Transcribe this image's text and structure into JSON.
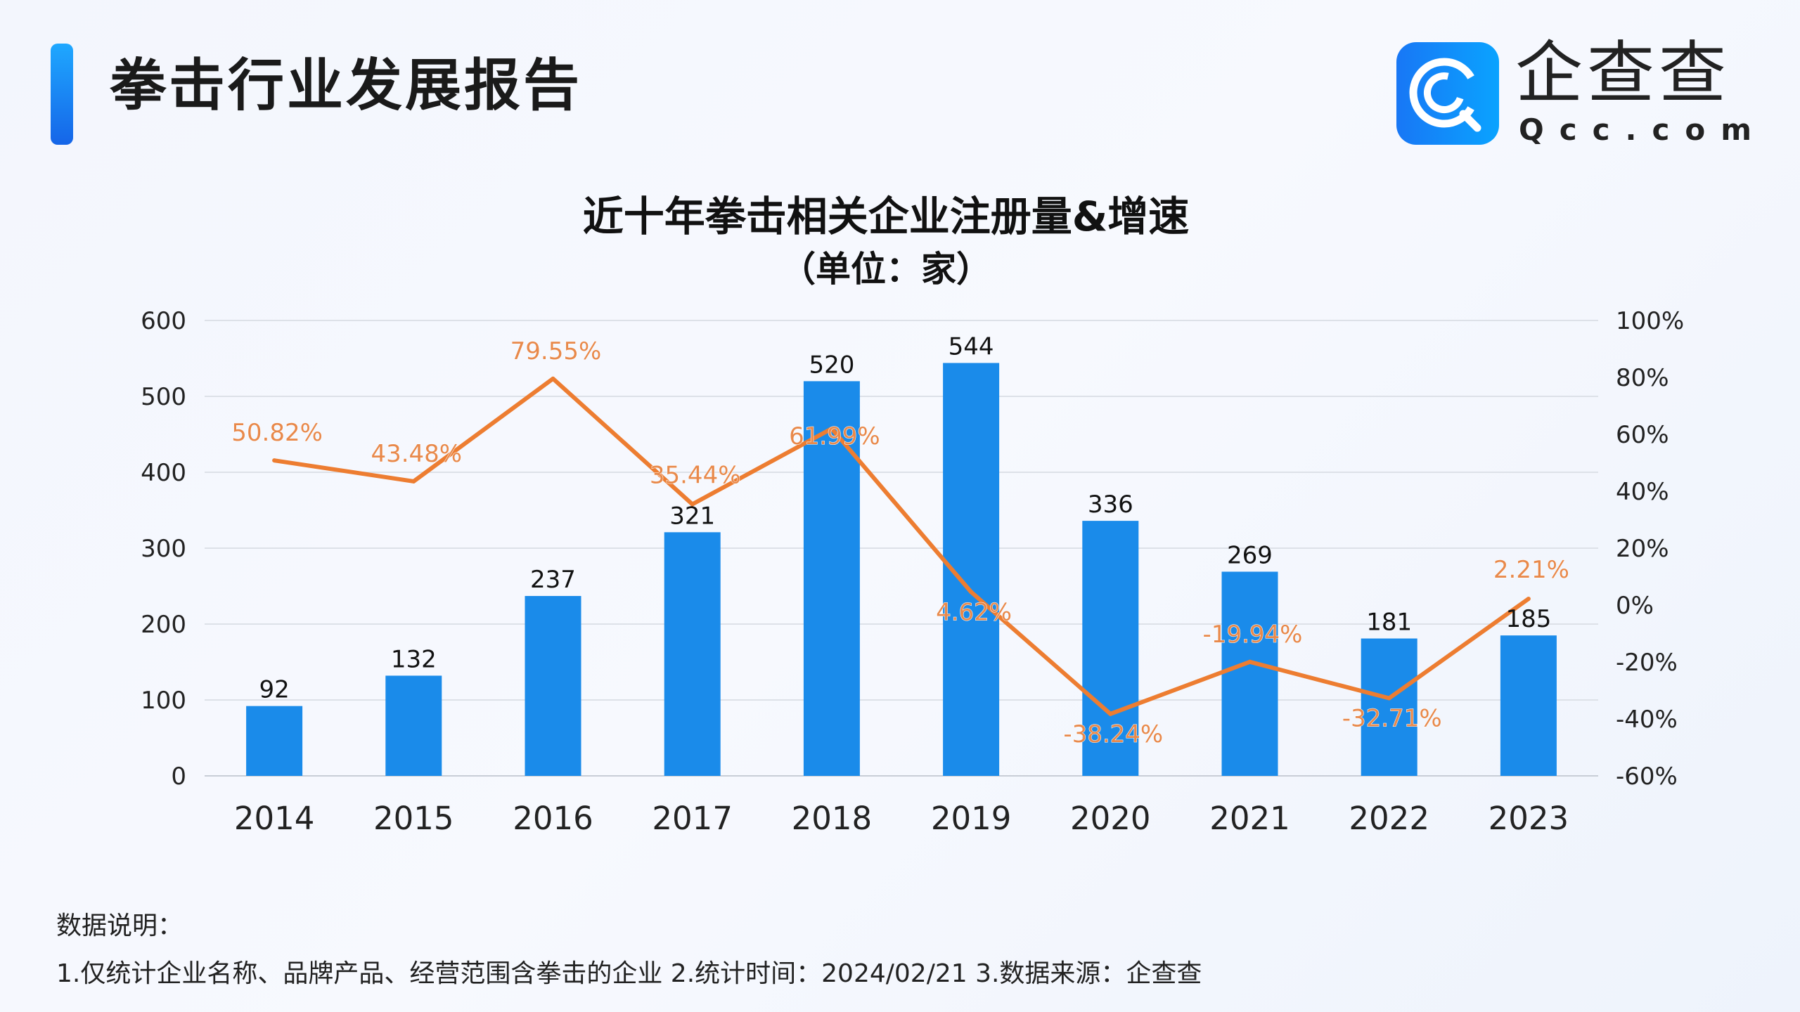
{
  "header": {
    "title": "拳击行业发展报告",
    "logo_text": "企查查",
    "logo_sub": "Qcc.com"
  },
  "chart_data": {
    "type": "bar+line",
    "title": "近十年拳击相关企业注册量&增速",
    "subtitle": "（单位：家）",
    "categories": [
      "2014",
      "2015",
      "2016",
      "2017",
      "2018",
      "2019",
      "2020",
      "2021",
      "2022",
      "2023"
    ],
    "series": [
      {
        "type": "bar",
        "axis": "left",
        "values": [
          92,
          132,
          237,
          321,
          520,
          544,
          336,
          269,
          181,
          185
        ],
        "color": "#1a8bea"
      },
      {
        "type": "line",
        "axis": "right",
        "values": [
          50.82,
          43.48,
          79.55,
          35.44,
          61.99,
          4.62,
          -38.24,
          -19.94,
          -32.71,
          2.21
        ],
        "labels": [
          "50.82%",
          "43.48%",
          "79.55%",
          "35.44%",
          "61.99%",
          "4.62%",
          "-38.24%",
          "-19.94%",
          "-32.71%",
          "2.21%"
        ],
        "color": "#ed7d31"
      }
    ],
    "ylim": [
      0,
      600
    ],
    "yticks": [
      "0",
      "100",
      "200",
      "300",
      "400",
      "500",
      "600"
    ],
    "y2lim": [
      -60,
      100
    ],
    "y2ticks": [
      "-60%",
      "-40%",
      "-20%",
      "0%",
      "20%",
      "40%",
      "60%",
      "80%",
      "100%"
    ],
    "grid": true,
    "legend": "none"
  },
  "footer": {
    "note_title": "数据说明：",
    "note": "1.仅统计企业名称、品牌产品、经营范围含拳击的企业   2.统计时间：2024/02/21   3.数据来源：企查查"
  }
}
